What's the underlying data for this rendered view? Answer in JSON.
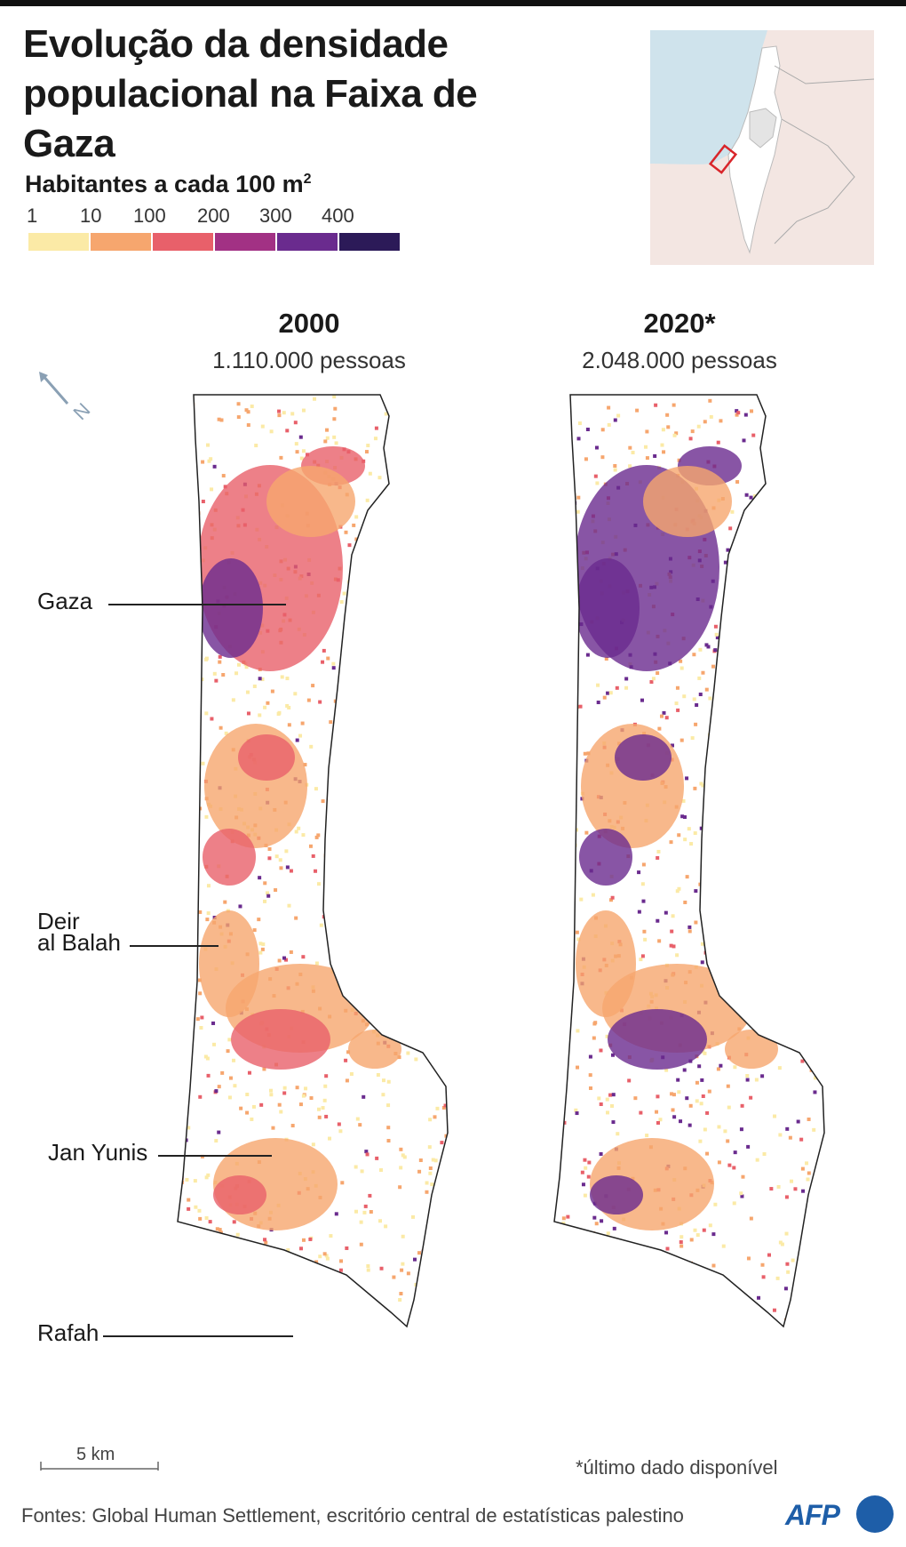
{
  "title": "Evolução da densidade populacional na Faixa de Gaza",
  "legend": {
    "title": "Habitantes a cada 100 m",
    "title_superscript": "2",
    "ticks": [
      "1",
      "10",
      "100",
      "200",
      "300",
      "400"
    ],
    "colors": [
      "#fbeaa6",
      "#f6a66e",
      "#e8606a",
      "#a23184",
      "#6a2b8e",
      "#2c1a58"
    ]
  },
  "inset_map": {
    "sea_color": "#cfe3ec",
    "land_color": "#f3e6e2",
    "israel_color": "#ffffff",
    "highlight_color": "#d9252a"
  },
  "panels": [
    {
      "year": "2000",
      "population": "1.110.000 pessoas",
      "level_weights": {
        "light": 0.45,
        "orange": 0.35,
        "red": 0.15,
        "purple": 0.05
      }
    },
    {
      "year": "2020*",
      "population": "2.048.000 pessoas",
      "level_weights": {
        "light": 0.35,
        "orange": 0.3,
        "red": 0.15,
        "purple": 0.2
      }
    }
  ],
  "cities": [
    {
      "name": "Gaza"
    },
    {
      "name": "Deir\nal Balah"
    },
    {
      "name": "Jan Yunis"
    },
    {
      "name": "Rafah"
    }
  ],
  "north_label": "N",
  "scale_label": "5 km",
  "footnote": "*último dado disponível",
  "sources": "Fontes: Global Human Settlement, escritório central de estatísticas palestino",
  "agency": "AFP"
}
